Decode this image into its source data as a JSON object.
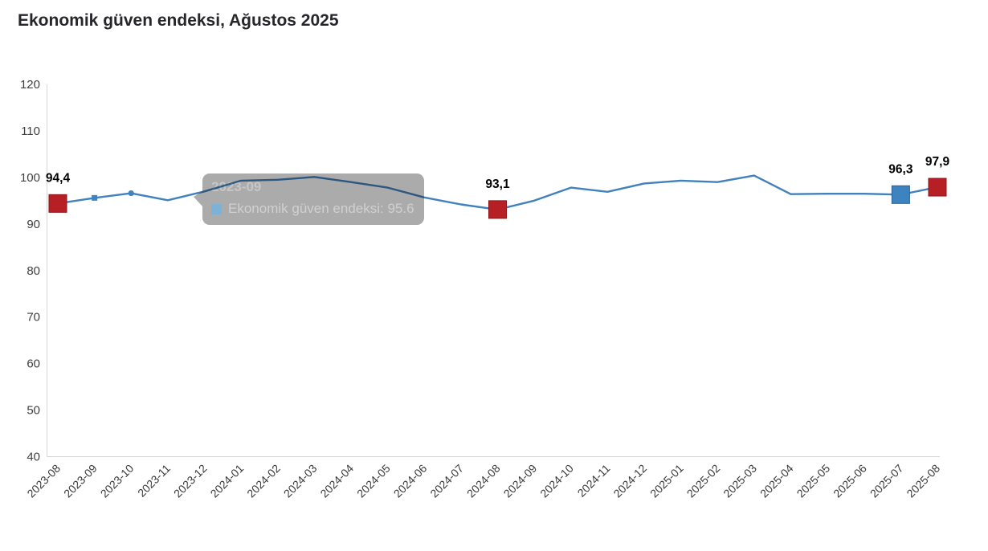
{
  "title": "Ekonomik güven endeksi, Ağustos 2025",
  "colors": {
    "line": "#4181bd",
    "marker_red": "#b62025",
    "marker_red_border": "#8c1418",
    "marker_blue": "#3c83c0",
    "marker_blue_border": "#2a6094",
    "small_marker": "#3d85c1",
    "axis": "#d6d6d6",
    "y_tick_label": "#404040",
    "x_tick_label": "#3a3a3a",
    "data_label": "#000000",
    "title_color": "#26262b",
    "tooltip_bg": "#ababab",
    "tooltip_header": "#c6c6c6",
    "tooltip_text": "#d0d0d0",
    "tooltip_symbol": "#7cb1d8"
  },
  "chart_data": {
    "type": "line",
    "title": "Ekonomik güven endeksi, Ağustos 2025",
    "series_name": "Ekonomik güven endeksi",
    "x": [
      "2023-08",
      "2023-09",
      "2023-10",
      "2023-11",
      "2023-12",
      "2024-01",
      "2024-02",
      "2024-03",
      "2024-04",
      "2024-05",
      "2024-06",
      "2024-07",
      "2024-08",
      "2024-09",
      "2024-10",
      "2024-11",
      "2024-12",
      "2025-01",
      "2025-02",
      "2025-03",
      "2025-04",
      "2025-05",
      "2025-06",
      "2025-07",
      "2025-08"
    ],
    "values": [
      94.4,
      95.6,
      96.6,
      95.1,
      97.0,
      99.3,
      99.5,
      100.1,
      99.0,
      97.8,
      95.7,
      94.2,
      93.1,
      95.0,
      97.8,
      96.9,
      98.7,
      99.3,
      99.0,
      100.4,
      96.4,
      96.5,
      96.5,
      96.3,
      97.9
    ],
    "ylim": [
      40,
      120
    ],
    "ytick_step": 10,
    "grid": false,
    "legend": "none",
    "xlabel": "",
    "ylabel": "",
    "highlight_points": [
      {
        "x": "2023-08",
        "value": 94.4,
        "label": "94,4",
        "color": "red"
      },
      {
        "x": "2024-08",
        "value": 93.1,
        "label": "93,1",
        "color": "red"
      },
      {
        "x": "2025-07",
        "value": 96.3,
        "label": "96,3",
        "color": "blue"
      },
      {
        "x": "2025-08",
        "value": 97.9,
        "label": "97,9",
        "color": "red"
      }
    ],
    "small_markers": [
      {
        "x": "2023-09",
        "shape": "square"
      },
      {
        "x": "2023-10",
        "shape": "circle"
      }
    ]
  },
  "y_axis": {
    "ticks": [
      "120",
      "110",
      "100",
      "90",
      "80",
      "70",
      "60",
      "50",
      "40"
    ]
  },
  "tooltip": {
    "header": "2023-09",
    "series_label": "Ekonomik güven endeksi",
    "value": "95.6",
    "text": "Ekonomik güven endeksi: 95.6"
  }
}
